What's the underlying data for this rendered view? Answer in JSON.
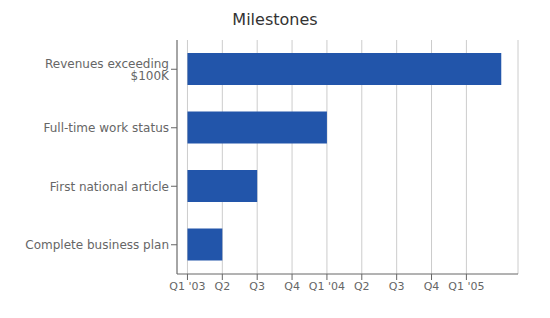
{
  "chart_data": {
    "type": "bar",
    "title": "Milestones",
    "orientation": "horizontal",
    "categories": [
      "Complete business plan",
      "First national article",
      "Full-time work status",
      "Revenues exceeding $100K"
    ],
    "values": [
      1,
      2,
      4,
      9
    ],
    "color": "#2255aa",
    "xlim": [
      -0.3,
      9.48
    ],
    "xticks": [
      {
        "value": 0,
        "label": "Q1 '03"
      },
      {
        "value": 1,
        "label": "Q2"
      },
      {
        "value": 2,
        "label": "Q3"
      },
      {
        "value": 3,
        "label": "Q4"
      },
      {
        "value": 4,
        "label": "Q1 '04"
      },
      {
        "value": 5,
        "label": "Q2"
      },
      {
        "value": 6,
        "label": "Q3"
      },
      {
        "value": 7,
        "label": "Q4"
      },
      {
        "value": 8,
        "label": "Q1 '05"
      }
    ],
    "grid": true
  }
}
